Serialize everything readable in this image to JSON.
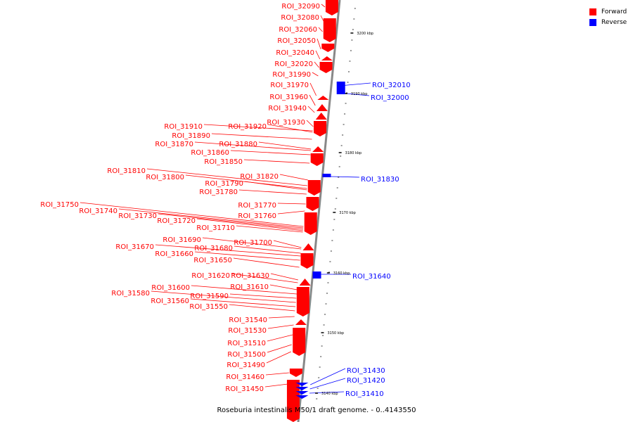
{
  "legend": {
    "forward": {
      "label": "Forward",
      "color": "#ff0000"
    },
    "reverse": {
      "label": "Reverse",
      "color": "#0000ff"
    }
  },
  "caption": "Roseburia intestinalis M50/1 draft genome. - 0..4143550",
  "scale_ticks": [
    "3200 kbp",
    "3190 kbp",
    "3180 kbp",
    "3170 kbp",
    "3160 kbp",
    "3150 kbp",
    "3140 kbp"
  ],
  "features_forward": [
    "ROI_32090",
    "ROI_32080",
    "ROI_32060",
    "ROI_32050",
    "ROI_32040",
    "ROI_32020",
    "ROI_31990",
    "ROI_31970",
    "ROI_31960",
    "ROI_31940",
    "ROI_31930",
    "ROI_31920",
    "ROI_31910",
    "ROI_31890",
    "ROI_31880",
    "ROI_31870",
    "ROI_31860",
    "ROI_31850",
    "ROI_31820",
    "ROI_31810",
    "ROI_31800",
    "ROI_31790",
    "ROI_31780",
    "ROI_31770",
    "ROI_31760",
    "ROI_31750",
    "ROI_31740",
    "ROI_31730",
    "ROI_31720",
    "ROI_31710",
    "ROI_31700",
    "ROI_31690",
    "ROI_31680",
    "ROI_31670",
    "ROI_31660",
    "ROI_31650",
    "ROI_31630",
    "ROI_31620",
    "ROI_31610",
    "ROI_31600",
    "ROI_31590",
    "ROI_31580",
    "ROI_31560",
    "ROI_31550",
    "ROI_31540",
    "ROI_31530",
    "ROI_31510",
    "ROI_31500",
    "ROI_31490",
    "ROI_31460",
    "ROI_31450"
  ],
  "features_reverse": [
    "ROI_32010",
    "ROI_32000",
    "ROI_31830",
    "ROI_31640",
    "ROI_31430",
    "ROI_31420",
    "ROI_31410"
  ]
}
